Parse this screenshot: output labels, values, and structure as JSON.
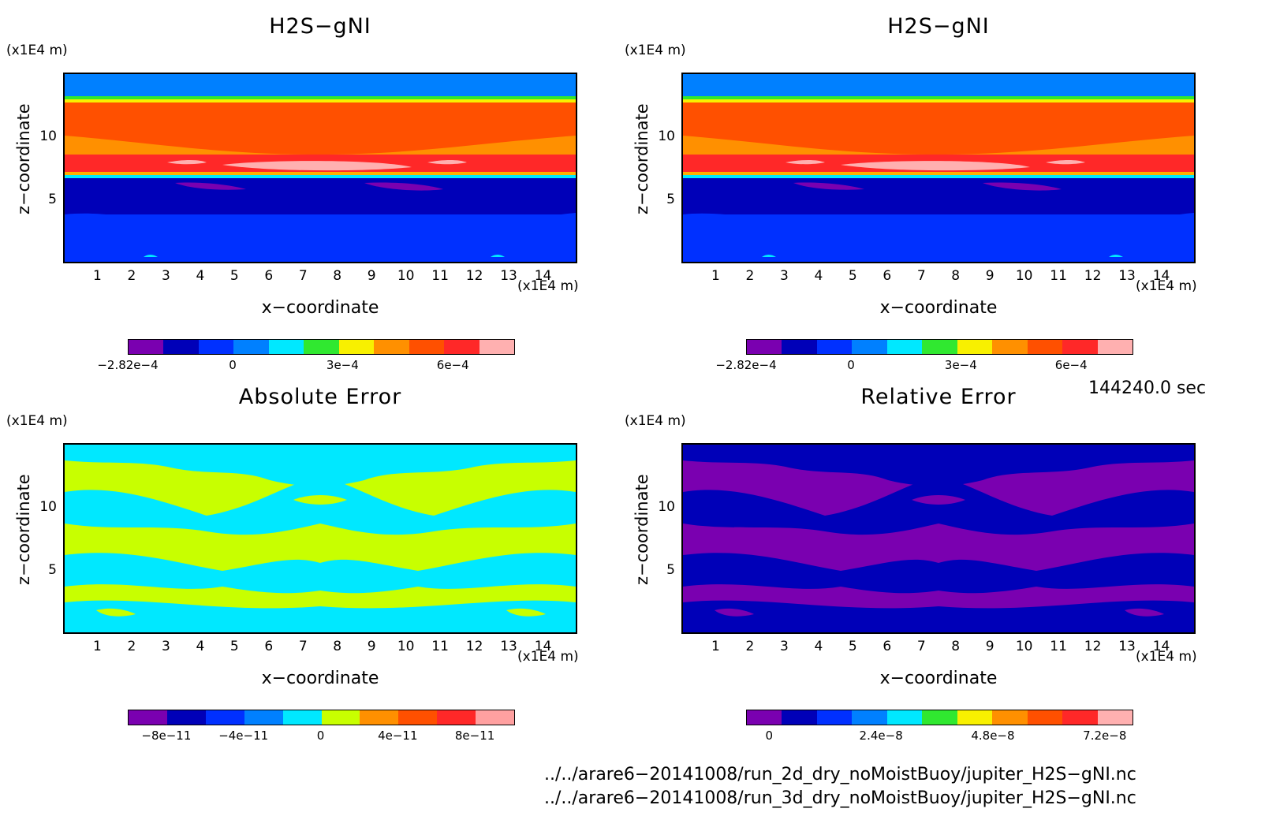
{
  "panels": [
    {
      "title": "H2S−gNI",
      "xlabel": "x−coordinate",
      "ylabel": "z−coordinate",
      "x_unit": "(x1E4 m)",
      "y_unit": "(x1E4 m)",
      "colorbar": {
        "colors": [
          "#7a00b0",
          "#0000b8",
          "#0030ff",
          "#0080ff",
          "#00e8ff",
          "#30e830",
          "#f8f000",
          "#ff9000",
          "#ff5000",
          "#ff2828",
          "#ffb0b0"
        ],
        "ticks": [
          {
            "label": "−2.82e−4",
            "pos": 0.0
          },
          {
            "label": "0",
            "pos": 0.272
          },
          {
            "label": "3e−4",
            "pos": 0.557
          },
          {
            "label": "6e−4",
            "pos": 0.843
          }
        ]
      }
    },
    {
      "title": "H2S−gNI",
      "xlabel": "x−coordinate",
      "ylabel": "z−coordinate",
      "x_unit": "(x1E4 m)",
      "y_unit": "(x1E4 m)",
      "colorbar": {
        "colors": [
          "#7a00b0",
          "#0000b8",
          "#0030ff",
          "#0080ff",
          "#00e8ff",
          "#30e830",
          "#f8f000",
          "#ff9000",
          "#ff5000",
          "#ff2828",
          "#ffb0b0"
        ],
        "ticks": [
          {
            "label": "−2.82e−4",
            "pos": 0.0
          },
          {
            "label": "0",
            "pos": 0.272
          },
          {
            "label": "3e−4",
            "pos": 0.557
          },
          {
            "label": "6e−4",
            "pos": 0.843
          }
        ]
      }
    },
    {
      "title": "Absolute Error",
      "xlabel": "x−coordinate",
      "ylabel": "z−coordinate",
      "x_unit": "(x1E4 m)",
      "y_unit": "(x1E4 m)",
      "colorbar": {
        "colors": [
          "#7a00b0",
          "#0000b8",
          "#0030ff",
          "#0080ff",
          "#00e8ff",
          "#c8ff00",
          "#ff9000",
          "#ff5000",
          "#ff2828",
          "#ffa0a0"
        ],
        "ticks": [
          {
            "label": "−8e−11",
            "pos": 0.1
          },
          {
            "label": "−4e−11",
            "pos": 0.3
          },
          {
            "label": "0",
            "pos": 0.5
          },
          {
            "label": "4e−11",
            "pos": 0.7
          },
          {
            "label": "8e−11",
            "pos": 0.9
          }
        ]
      }
    },
    {
      "title": "Relative Error",
      "xlabel": "x−coordinate",
      "ylabel": "z−coordinate",
      "x_unit": "(x1E4 m)",
      "y_unit": "(x1E4 m)",
      "colorbar": {
        "colors": [
          "#7a00b0",
          "#0000b8",
          "#0030ff",
          "#0080ff",
          "#00e8ff",
          "#30e830",
          "#f8f000",
          "#ff9000",
          "#ff5000",
          "#ff2828",
          "#ffb0b0"
        ],
        "ticks": [
          {
            "label": "0",
            "pos": 0.06
          },
          {
            "label": "2.4e−8",
            "pos": 0.35
          },
          {
            "label": "4.8e−8",
            "pos": 0.64
          },
          {
            "label": "7.2e−8",
            "pos": 0.93
          }
        ]
      }
    }
  ],
  "x_ticks": [
    "1",
    "2",
    "3",
    "4",
    "5",
    "6",
    "7",
    "8",
    "9",
    "10",
    "11",
    "12",
    "13",
    "14"
  ],
  "y_ticks": [
    "5",
    "10"
  ],
  "timestamp": "144240.0 sec",
  "files": [
    "../../arare6−20141008/run_2d_dry_noMoistBuoy/jupiter_H2S−gNI.nc",
    "../../arare6−20141008/run_3d_dry_noMoistBuoy/jupiter_H2S−gNI.nc"
  ],
  "chart_data": [
    {
      "type": "heatmap",
      "title": "H2S−gNI",
      "xlabel": "x−coordinate",
      "ylabel": "z−coordinate",
      "xlim": [
        0,
        15
      ],
      "ylim": [
        0,
        15
      ],
      "colorbar_ticks": [
        "−2.82e−4",
        "0",
        "3e−4",
        "6e−4"
      ]
    },
    {
      "type": "heatmap",
      "title": "H2S−gNI",
      "xlabel": "x−coordinate",
      "ylabel": "z−coordinate",
      "xlim": [
        0,
        15
      ],
      "ylim": [
        0,
        15
      ],
      "colorbar_ticks": [
        "−2.82e−4",
        "0",
        "3e−4",
        "6e−4"
      ]
    },
    {
      "type": "heatmap",
      "title": "Absolute Error",
      "xlabel": "x−coordinate",
      "ylabel": "z−coordinate",
      "xlim": [
        0,
        15
      ],
      "ylim": [
        0,
        15
      ],
      "colorbar_ticks": [
        "−8e−11",
        "−4e−11",
        "0",
        "4e−11",
        "8e−11"
      ]
    },
    {
      "type": "heatmap",
      "title": "Relative Error",
      "xlabel": "x−coordinate",
      "ylabel": "z−coordinate",
      "xlim": [
        0,
        15
      ],
      "ylim": [
        0,
        15
      ],
      "colorbar_ticks": [
        "0",
        "2.4e−8",
        "4.8e−8",
        "7.2e−8"
      ]
    }
  ]
}
